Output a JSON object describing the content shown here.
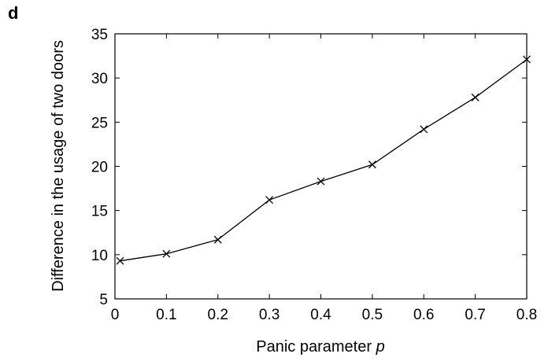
{
  "panel_label": "d",
  "chart_data": {
    "type": "line",
    "title": "",
    "xlabel": "Panic parameter",
    "xlabel_var": "p",
    "ylabel": "Difference in the usage of two doors",
    "xlim": [
      0,
      0.8
    ],
    "ylim": [
      5,
      35
    ],
    "xticks": [
      0,
      0.1,
      0.2,
      0.3,
      0.4,
      0.5,
      0.6,
      0.7,
      0.8
    ],
    "xtick_labels": [
      "0",
      "0.1",
      "0.2",
      "0.3",
      "0.4",
      "0.5",
      "0.6",
      "0.7",
      "0.8"
    ],
    "yticks": [
      5,
      10,
      15,
      20,
      25,
      30,
      35
    ],
    "ytick_labels": [
      "5",
      "10",
      "15",
      "20",
      "25",
      "30",
      "35"
    ],
    "grid": false,
    "marker": "x",
    "line_color": "#000000",
    "series": [
      {
        "x": [
          0.01,
          0.1,
          0.2,
          0.3,
          0.4,
          0.5,
          0.6,
          0.7,
          0.8
        ],
        "y": [
          9.3,
          10.1,
          11.7,
          16.2,
          18.3,
          20.2,
          24.2,
          27.8,
          32.1
        ]
      }
    ]
  }
}
